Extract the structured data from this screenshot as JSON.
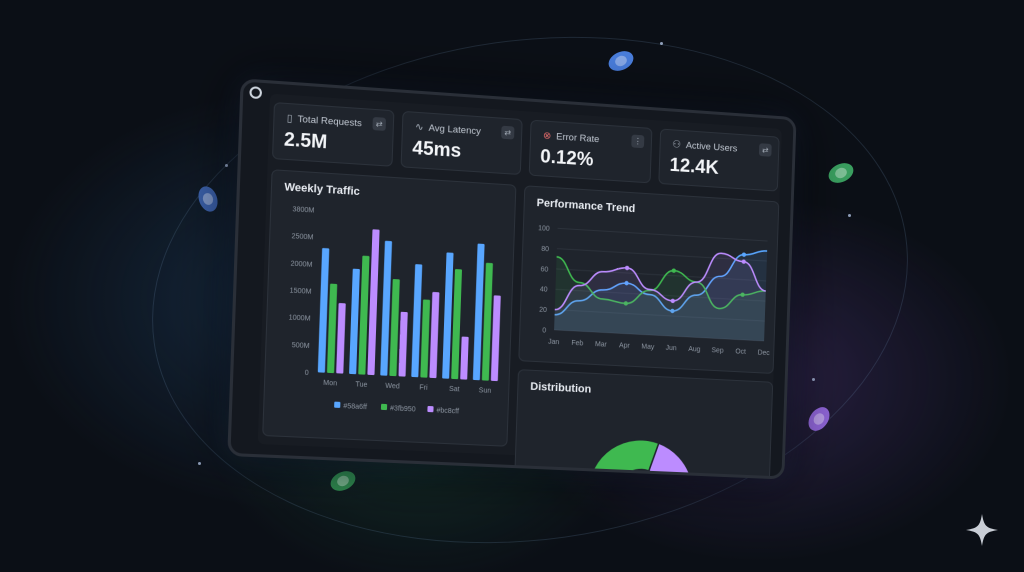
{
  "kpis": [
    {
      "title": "Total Requests",
      "value": "2.5M",
      "icon": "file-icon"
    },
    {
      "title": "Avg Latency",
      "value": "45ms",
      "icon": "pulse-icon"
    },
    {
      "title": "Error Rate",
      "value": "0.12%",
      "icon": "error-circle-icon"
    },
    {
      "title": "Active Users",
      "value": "12.4K",
      "icon": "users-icon"
    }
  ],
  "weekly_traffic": {
    "title": "Weekly Traffic",
    "chart_data": {
      "type": "bar",
      "categories": [
        "Mon",
        "Tue",
        "Wed",
        "Fri",
        "Sat",
        "Sun"
      ],
      "y_ticks": [
        "3800M",
        "2500M",
        "2000M",
        "1500M",
        "1000M",
        "500M",
        "0"
      ],
      "series": [
        {
          "name": "#58a6ff",
          "color": "#58a6ff",
          "values": [
            2300,
            1950,
            2500,
            2100,
            2350,
            2550
          ]
        },
        {
          "name": "#3fb950",
          "color": "#3fb950",
          "values": [
            1650,
            2200,
            1800,
            1450,
            2050,
            2200
          ]
        },
        {
          "name": "#bc8cff",
          "color": "#bc8cff",
          "values": [
            1300,
            2700,
            1200,
            1600,
            800,
            1600
          ]
        }
      ]
    }
  },
  "performance_trend": {
    "title": "Performance Trend",
    "chart_data": {
      "type": "line",
      "categories": [
        "Jan",
        "Feb",
        "Mar",
        "Apr",
        "May",
        "Jun",
        "Aug",
        "Sep",
        "Oct",
        "Dec"
      ],
      "y_ticks": [
        "100",
        "80",
        "60",
        "40",
        "20",
        "0"
      ],
      "ylim": [
        0,
        100
      ],
      "series": [
        {
          "color": "#58a6ff",
          "values": [
            15,
            30,
            42,
            50,
            40,
            25,
            42,
            62,
            85,
            90
          ]
        },
        {
          "color": "#3fb950",
          "values": [
            72,
            48,
            33,
            30,
            44,
            65,
            55,
            30,
            45,
            50
          ]
        },
        {
          "color": "#bc8cff",
          "values": [
            20,
            45,
            60,
            65,
            45,
            35,
            55,
            85,
            78,
            50
          ]
        }
      ]
    }
  },
  "distribution": {
    "title": "Distribution",
    "chart_data": {
      "type": "pie",
      "slices": [
        {
          "color": "#3fb950",
          "value": 30
        },
        {
          "color": "#bc8cff",
          "value": 15
        },
        {
          "color": "#58a6ff",
          "value": 55
        }
      ]
    }
  }
}
